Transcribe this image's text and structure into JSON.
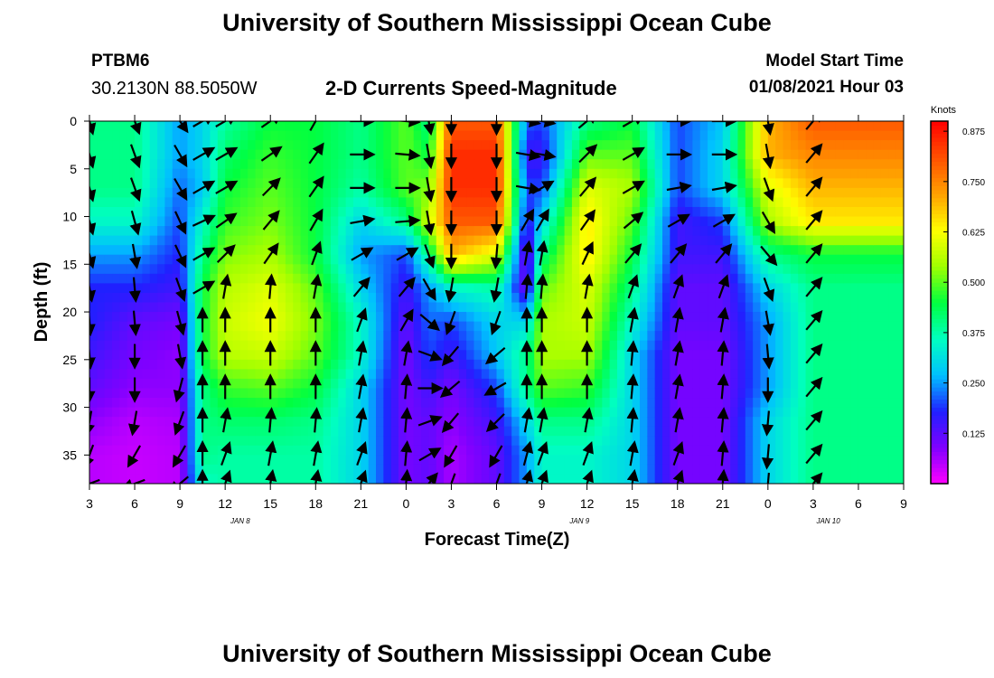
{
  "header": {
    "title": "University of Southern Mississippi Ocean Cube",
    "station": "PTBM6",
    "coordinates": "30.2130N 88.5050W",
    "chart_title": "2-D Currents Speed-Magnitude",
    "start_label": "Model Start Time",
    "start_value": "01/08/2021 Hour 03"
  },
  "footer": {
    "title": "University of Southern Mississippi Ocean Cube"
  },
  "chart_data": {
    "type": "heatmap",
    "title": "2-D Currents Speed-Magnitude",
    "xlabel": "Forecast Time(Z)",
    "ylabel": "Depth (ft)",
    "colorbar_label": "Knots",
    "x_hours": [
      0,
      54
    ],
    "y_range": [
      0,
      38
    ],
    "y_inverted": true,
    "x_tick_labels": [
      "3",
      "6",
      "9",
      "12",
      "15",
      "18",
      "21",
      "0",
      "3",
      "6",
      "9",
      "12",
      "15",
      "18",
      "21",
      "0",
      "3",
      "6",
      "9"
    ],
    "y_ticks": [
      0,
      5,
      10,
      15,
      20,
      25,
      30,
      35
    ],
    "date_labels": [
      {
        "text": "JAN 8",
        "hour": 10
      },
      {
        "text": "JAN 9",
        "hour": 32.5
      },
      {
        "text": "JAN 10",
        "hour": 49
      }
    ],
    "colorbar_ticks": [
      0.125,
      0.25,
      0.375,
      0.5,
      0.625,
      0.75,
      0.875
    ],
    "colorbar_range": [
      0,
      0.9
    ],
    "colorscale": [
      "#ff00ff",
      "#8000ff",
      "#2020ff",
      "#00c0ff",
      "#00ffc0",
      "#00ff40",
      "#a0ff00",
      "#ffff00",
      "#ffa000",
      "#ff5000",
      "#ff0000"
    ],
    "depths": [
      0,
      3.5,
      7,
      10.5,
      14,
      17.5,
      21,
      24.5,
      28,
      31.5,
      35,
      38
    ],
    "columns": [
      {
        "hour": 0,
        "speed": [
          0.4,
          0.4,
          0.4,
          0.35,
          0.25,
          0.18,
          0.18,
          0.15,
          0.12,
          0.08,
          0.05,
          0.05
        ],
        "dir": [
          165,
          165,
          165,
          165,
          165,
          170,
          175,
          175,
          180,
          190,
          200,
          250
        ]
      },
      {
        "hour": 3,
        "speed": [
          0.4,
          0.4,
          0.4,
          0.35,
          0.25,
          0.18,
          0.12,
          0.1,
          0.08,
          0.05,
          0.04,
          0.04
        ],
        "dir": [
          160,
          160,
          160,
          165,
          170,
          175,
          175,
          180,
          180,
          190,
          210,
          250
        ]
      },
      {
        "hour": 6,
        "speed": [
          0.25,
          0.25,
          0.22,
          0.2,
          0.18,
          0.15,
          0.1,
          0.08,
          0.08,
          0.06,
          0.05,
          0.05
        ],
        "dir": [
          145,
          150,
          150,
          155,
          155,
          160,
          165,
          170,
          195,
          200,
          210,
          230
        ]
      },
      {
        "hour": 7.5,
        "speed": [
          0.3,
          0.3,
          0.28,
          0.35,
          0.4,
          0.45,
          0.45,
          0.45,
          0.4,
          0.4,
          0.4,
          0.35
        ],
        "dir": [
          60,
          60,
          60,
          65,
          60,
          60,
          0,
          0,
          0,
          0,
          0,
          0
        ]
      },
      {
        "hour": 9,
        "speed": [
          0.38,
          0.42,
          0.45,
          0.48,
          0.52,
          0.56,
          0.58,
          0.56,
          0.48,
          0.42,
          0.38,
          0.38
        ],
        "dir": [
          60,
          60,
          60,
          55,
          45,
          10,
          0,
          0,
          0,
          10,
          20,
          20
        ]
      },
      {
        "hour": 12,
        "speed": [
          0.45,
          0.48,
          0.5,
          0.52,
          0.55,
          0.6,
          0.62,
          0.58,
          0.5,
          0.42,
          0.38,
          0.38
        ],
        "dir": [
          55,
          55,
          45,
          40,
          35,
          5,
          0,
          0,
          0,
          5,
          10,
          10
        ]
      },
      {
        "hour": 15,
        "speed": [
          0.45,
          0.45,
          0.45,
          0.45,
          0.45,
          0.5,
          0.52,
          0.5,
          0.45,
          0.4,
          0.38,
          0.38
        ],
        "dir": [
          30,
          35,
          35,
          30,
          20,
          10,
          0,
          0,
          0,
          5,
          10,
          10
        ]
      },
      {
        "hour": 18,
        "speed": [
          0.4,
          0.4,
          0.38,
          0.3,
          0.25,
          0.3,
          0.35,
          0.35,
          0.3,
          0.3,
          0.3,
          0.3
        ],
        "dir": [
          90,
          90,
          90,
          80,
          60,
          40,
          20,
          10,
          10,
          10,
          20,
          20
        ]
      },
      {
        "hour": 21,
        "speed": [
          0.5,
          0.5,
          0.5,
          0.4,
          0.2,
          0.15,
          0.12,
          0.1,
          0.1,
          0.1,
          0.1,
          0.1
        ],
        "dir": [
          95,
          95,
          90,
          85,
          60,
          40,
          30,
          10,
          5,
          5,
          5,
          5
        ]
      },
      {
        "hour": 22.5,
        "speed": [
          0.4,
          0.45,
          0.52,
          0.58,
          0.4,
          0.25,
          0.22,
          0.2,
          0.15,
          0.12,
          0.12,
          0.12
        ],
        "dir": [
          170,
          170,
          170,
          170,
          160,
          150,
          130,
          110,
          90,
          70,
          60,
          40
        ]
      },
      {
        "hour": 24,
        "speed": [
          0.8,
          0.85,
          0.85,
          0.8,
          0.7,
          0.35,
          0.2,
          0.15,
          0.1,
          0.08,
          0.06,
          0.06
        ],
        "dir": [
          180,
          180,
          180,
          180,
          180,
          190,
          200,
          220,
          230,
          220,
          210,
          200
        ]
      },
      {
        "hour": 27,
        "speed": [
          0.8,
          0.85,
          0.85,
          0.8,
          0.6,
          0.38,
          0.3,
          0.28,
          0.2,
          0.15,
          0.12,
          0.12
        ],
        "dir": [
          180,
          180,
          180,
          180,
          185,
          190,
          200,
          230,
          240,
          225,
          210,
          200
        ]
      },
      {
        "hour": 29,
        "speed": [
          0.22,
          0.15,
          0.2,
          0.15,
          0.08,
          0.1,
          0.3,
          0.4,
          0.4,
          0.3,
          0.25,
          0.25
        ],
        "dir": [
          100,
          100,
          100,
          30,
          10,
          5,
          0,
          0,
          0,
          10,
          15,
          15
        ]
      },
      {
        "hour": 30,
        "speed": [
          0.2,
          0.15,
          0.2,
          0.3,
          0.4,
          0.5,
          0.55,
          0.55,
          0.5,
          0.4,
          0.35,
          0.35
        ],
        "dir": [
          100,
          100,
          60,
          30,
          10,
          5,
          0,
          0,
          0,
          10,
          20,
          20
        ]
      },
      {
        "hour": 33,
        "speed": [
          0.4,
          0.5,
          0.6,
          0.65,
          0.65,
          0.6,
          0.58,
          0.55,
          0.48,
          0.4,
          0.35,
          0.35
        ],
        "dir": [
          50,
          45,
          40,
          35,
          25,
          10,
          0,
          0,
          0,
          10,
          20,
          20
        ]
      },
      {
        "hour": 36,
        "speed": [
          0.45,
          0.5,
          0.55,
          0.5,
          0.45,
          0.4,
          0.35,
          0.3,
          0.3,
          0.3,
          0.3,
          0.3
        ],
        "dir": [
          60,
          60,
          60,
          50,
          40,
          20,
          10,
          5,
          5,
          5,
          10,
          10
        ]
      },
      {
        "hour": 39,
        "speed": [
          0.2,
          0.2,
          0.2,
          0.15,
          0.15,
          0.12,
          0.12,
          0.1,
          0.1,
          0.1,
          0.1,
          0.1
        ],
        "dir": [
          90,
          90,
          80,
          60,
          40,
          20,
          10,
          10,
          10,
          10,
          20,
          20
        ]
      },
      {
        "hour": 42,
        "speed": [
          0.28,
          0.3,
          0.3,
          0.2,
          0.15,
          0.12,
          0.12,
          0.1,
          0.1,
          0.1,
          0.1,
          0.1
        ],
        "dir": [
          90,
          90,
          80,
          60,
          40,
          20,
          10,
          5,
          5,
          5,
          5,
          5
        ]
      },
      {
        "hour": 45,
        "speed": [
          0.7,
          0.7,
          0.6,
          0.55,
          0.4,
          0.3,
          0.25,
          0.25,
          0.25,
          0.3,
          0.3,
          0.3
        ],
        "dir": [
          170,
          170,
          160,
          150,
          140,
          160,
          170,
          175,
          180,
          185,
          185,
          185
        ]
      },
      {
        "hour": 48,
        "speed": [
          0.8,
          0.75,
          0.7,
          0.65,
          0.45,
          0.4,
          0.4,
          0.4,
          0.4,
          0.4,
          0.4,
          0.4
        ],
        "dir": [
          40,
          40,
          40,
          40,
          40,
          40,
          40,
          40,
          40,
          40,
          40,
          40
        ]
      }
    ]
  }
}
